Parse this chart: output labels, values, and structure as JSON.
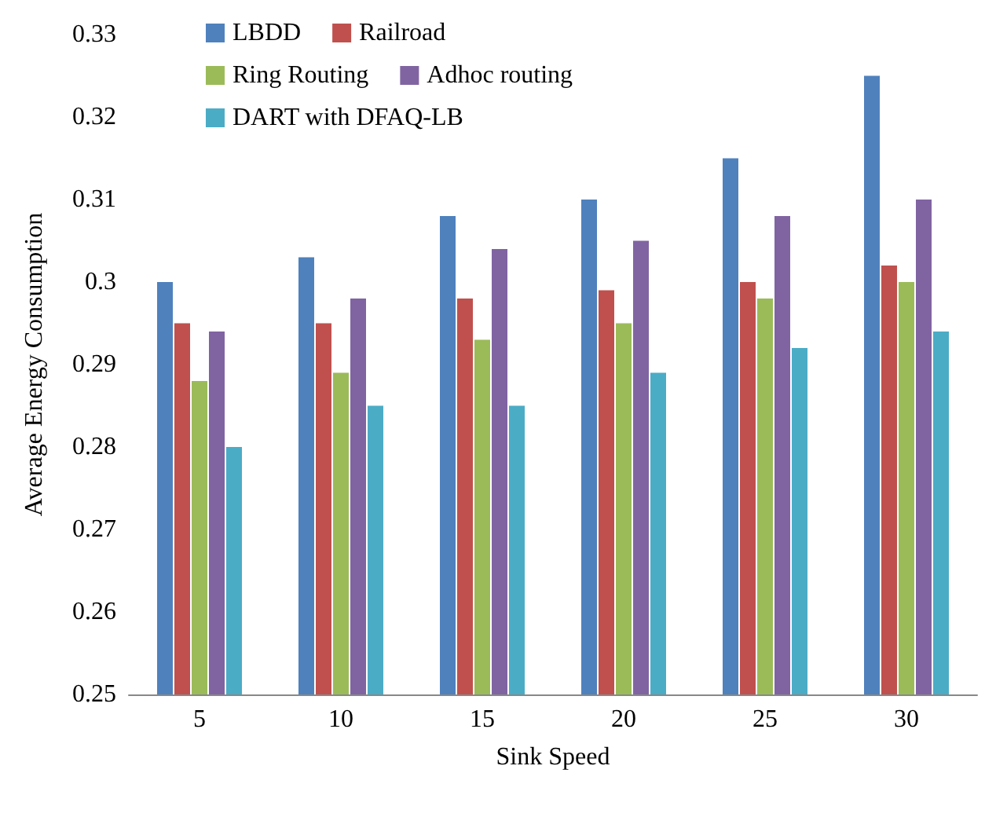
{
  "chart_data": {
    "type": "bar",
    "xlabel": "Sink Speed",
    "ylabel": "Average Energy Consumption",
    "categories": [
      "5",
      "10",
      "15",
      "20",
      "25",
      "30"
    ],
    "series": [
      {
        "name": "LBDD",
        "color": "#4f81bd",
        "values": [
          0.3,
          0.303,
          0.308,
          0.31,
          0.315,
          0.325
        ]
      },
      {
        "name": "Railroad",
        "color": "#c0504d",
        "values": [
          0.295,
          0.295,
          0.298,
          0.299,
          0.3,
          0.302
        ]
      },
      {
        "name": "Ring Routing",
        "color": "#9bbb59",
        "values": [
          0.288,
          0.289,
          0.293,
          0.295,
          0.298,
          0.3
        ]
      },
      {
        "name": "Adhoc routing",
        "color": "#8064a2",
        "values": [
          0.294,
          0.298,
          0.304,
          0.305,
          0.308,
          0.31
        ]
      },
      {
        "name": "DART with DFAQ-LB",
        "color": "#4bacc6",
        "values": [
          0.28,
          0.285,
          0.285,
          0.289,
          0.292,
          0.294
        ]
      }
    ],
    "ylim": [
      0.25,
      0.33
    ],
    "yticks": [
      0.25,
      0.26,
      0.27,
      0.28,
      0.29,
      0.3,
      0.31,
      0.32,
      0.33
    ],
    "grid": false,
    "legend": "top left"
  }
}
